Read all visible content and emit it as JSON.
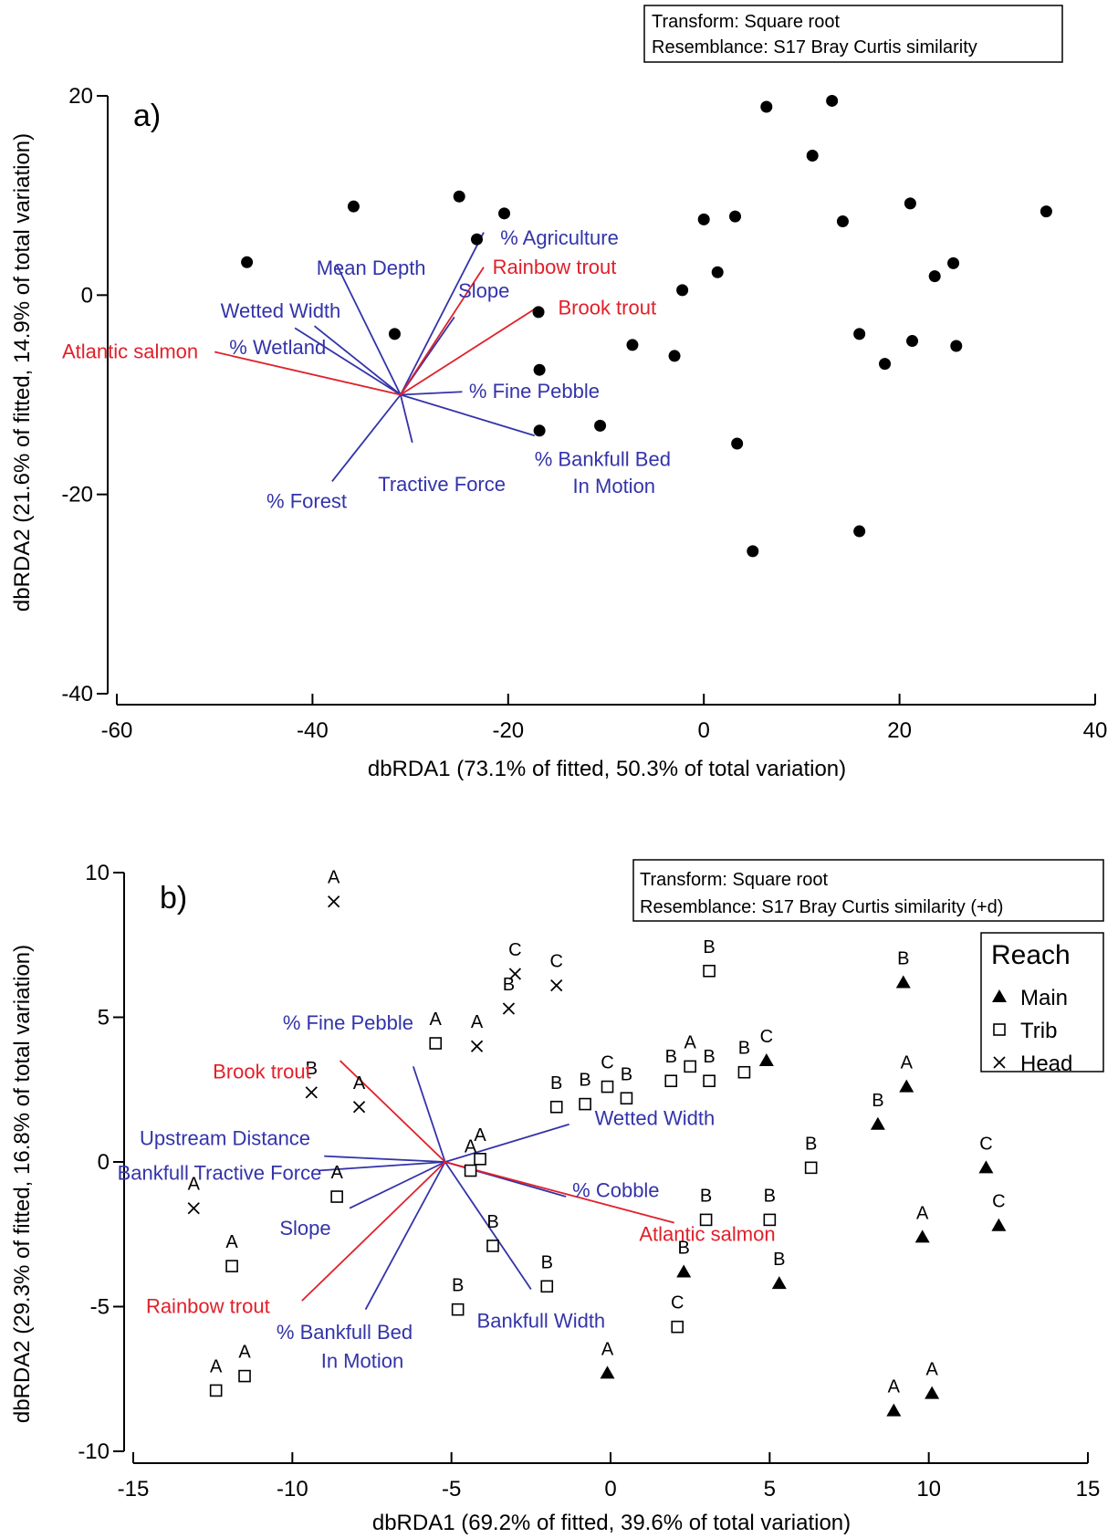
{
  "chart_data": [
    {
      "type": "scatter",
      "panel_label": "a)",
      "xlabel": "dbRDA1 (73.1% of fitted, 50.3% of total variation)",
      "ylabel": "dbRDA2 (21.6% of fitted, 14.9% of total variation)",
      "xlim": [
        -60,
        40
      ],
      "ylim": [
        -40,
        20
      ],
      "xticks": [
        -60,
        -40,
        -20,
        0,
        20,
        40
      ],
      "yticks": [
        -40,
        -20,
        0,
        20
      ],
      "grid": false,
      "info_box": [
        "Transform: Square root",
        "Resemblance: S17 Bray Curtis similarity"
      ],
      "points": [
        {
          "x": -46.7,
          "y": 3.3
        },
        {
          "x": -35.8,
          "y": 8.9
        },
        {
          "x": -31.6,
          "y": -3.9
        },
        {
          "x": -25.0,
          "y": 9.9
        },
        {
          "x": -23.2,
          "y": 5.6
        },
        {
          "x": -20.4,
          "y": 8.2
        },
        {
          "x": -16.9,
          "y": -1.7
        },
        {
          "x": -16.8,
          "y": -7.5
        },
        {
          "x": -16.8,
          "y": -13.6
        },
        {
          "x": -10.6,
          "y": -13.1
        },
        {
          "x": -7.3,
          "y": -5.0
        },
        {
          "x": -3.0,
          "y": -6.1
        },
        {
          "x": -2.2,
          "y": 0.5
        },
        {
          "x": 0.0,
          "y": 7.6
        },
        {
          "x": 1.4,
          "y": 2.3
        },
        {
          "x": 3.2,
          "y": 7.9
        },
        {
          "x": 3.4,
          "y": -14.9
        },
        {
          "x": 5.0,
          "y": -25.7
        },
        {
          "x": 6.4,
          "y": 18.9
        },
        {
          "x": 11.1,
          "y": 14.0
        },
        {
          "x": 13.1,
          "y": 19.5
        },
        {
          "x": 14.2,
          "y": 7.4
        },
        {
          "x": 15.9,
          "y": -3.9
        },
        {
          "x": 15.9,
          "y": -23.7
        },
        {
          "x": 18.5,
          "y": -6.9
        },
        {
          "x": 21.1,
          "y": 9.2
        },
        {
          "x": 21.3,
          "y": -4.6
        },
        {
          "x": 23.6,
          "y": 1.9
        },
        {
          "x": 25.5,
          "y": 3.2
        },
        {
          "x": 25.8,
          "y": -5.1
        },
        {
          "x": 35.0,
          "y": 8.4
        }
      ],
      "vectors": {
        "origin": [
          -31.0,
          -10.0
        ],
        "items": [
          {
            "label": "% Agriculture",
            "group": "env",
            "end": [
              -22.5,
              6.3
            ],
            "label_pos": [
              -20.8,
              5.7
            ]
          },
          {
            "label": "Mean Depth",
            "group": "env",
            "end": [
              -37.5,
              3.0
            ],
            "label_pos": [
              -39.6,
              2.7
            ]
          },
          {
            "label": "Wetted Width",
            "group": "env",
            "end": [
              -39.8,
              -3.1
            ],
            "label_pos": [
              -49.4,
              -1.6
            ]
          },
          {
            "label": "% Wetland",
            "group": "env",
            "end": [
              -41.8,
              -3.3
            ],
            "label_pos": [
              -48.5,
              -5.3
            ]
          },
          {
            "label": "Slope",
            "group": "env",
            "end": [
              -25.5,
              -2.2
            ],
            "label_pos": [
              -25.1,
              0.4
            ]
          },
          {
            "label": "% Fine Pebble",
            "group": "env",
            "end": [
              -24.7,
              -9.7
            ],
            "label_pos": [
              -24.0,
              -9.7
            ]
          },
          {
            "label": "% Bankfull Bed",
            "group": "env",
            "end": [
              -17.3,
              -14.1
            ],
            "label_pos": [
              -17.3,
              -16.5
            ]
          },
          {
            "label": "In Motion",
            "group": "env",
            "end": null,
            "label_pos": [
              -13.4,
              -19.2
            ]
          },
          {
            "label": "Tractive Force",
            "group": "env",
            "end": [
              -29.8,
              -14.8
            ],
            "label_pos": [
              -33.3,
              -19.0
            ]
          },
          {
            "label": "% Forest",
            "group": "env",
            "end": [
              -38.0,
              -18.7
            ],
            "label_pos": [
              -44.7,
              -20.7
            ]
          },
          {
            "label": "Rainbow trout",
            "group": "species",
            "end": [
              -22.5,
              2.8
            ],
            "label_pos": [
              -21.6,
              2.8
            ]
          },
          {
            "label": "Brook trout",
            "group": "species",
            "end": [
              -17.3,
              -1.4
            ],
            "label_pos": [
              -14.9,
              -1.3
            ]
          },
          {
            "label": "Atlantic salmon",
            "group": "species",
            "end": [
              -50.0,
              -5.7
            ],
            "label_pos": [
              -65.6,
              -5.7
            ]
          }
        ]
      }
    },
    {
      "type": "scatter",
      "panel_label": "b)",
      "xlabel": "dbRDA1 (69.2% of fitted, 39.6% of total variation)",
      "ylabel": "dbRDA2 (29.3% of fitted, 16.8% of total variation)",
      "xlim": [
        -15,
        15
      ],
      "ylim": [
        -10,
        10
      ],
      "xticks": [
        -15,
        -10,
        -5,
        0,
        5,
        10,
        15
      ],
      "yticks": [
        -10,
        -5,
        0,
        5,
        10
      ],
      "grid": false,
      "info_box": [
        "Transform: Square root",
        "Resemblance: S17 Bray Curtis similarity (+d)"
      ],
      "legend": {
        "title": "Reach",
        "position": "top-right",
        "items": [
          {
            "label": "Main",
            "marker": "triangle"
          },
          {
            "label": "Trib",
            "marker": "square"
          },
          {
            "label": "Head",
            "marker": "cross"
          }
        ]
      },
      "points": [
        {
          "x": -8.7,
          "y": 9.0,
          "reach": "Head",
          "label": "A"
        },
        {
          "x": -3.0,
          "y": 6.5,
          "reach": "Head",
          "label": "C"
        },
        {
          "x": -1.7,
          "y": 6.1,
          "reach": "Head",
          "label": "C"
        },
        {
          "x": -3.2,
          "y": 5.3,
          "reach": "Head",
          "label": "B"
        },
        {
          "x": -4.2,
          "y": 4.0,
          "reach": "Head",
          "label": "A"
        },
        {
          "x": -9.4,
          "y": 2.4,
          "reach": "Head",
          "label": "B"
        },
        {
          "x": -7.9,
          "y": 1.9,
          "reach": "Head",
          "label": "A"
        },
        {
          "x": -13.1,
          "y": -1.6,
          "reach": "Head",
          "label": "A"
        },
        {
          "x": 3.1,
          "y": 6.6,
          "reach": "Trib",
          "label": "B"
        },
        {
          "x": -5.5,
          "y": 4.1,
          "reach": "Trib",
          "label": "A"
        },
        {
          "x": 2.5,
          "y": 3.3,
          "reach": "Trib",
          "label": "A"
        },
        {
          "x": 1.9,
          "y": 2.8,
          "reach": "Trib",
          "label": "B"
        },
        {
          "x": 3.1,
          "y": 2.8,
          "reach": "Trib",
          "label": "B"
        },
        {
          "x": 4.2,
          "y": 3.1,
          "reach": "Trib",
          "label": "B"
        },
        {
          "x": -0.1,
          "y": 2.6,
          "reach": "Trib",
          "label": "C"
        },
        {
          "x": 0.5,
          "y": 2.2,
          "reach": "Trib",
          "label": "B"
        },
        {
          "x": -1.7,
          "y": 1.9,
          "reach": "Trib",
          "label": "B"
        },
        {
          "x": -0.8,
          "y": 2.0,
          "reach": "Trib",
          "label": "B"
        },
        {
          "x": -4.1,
          "y": 0.1,
          "reach": "Trib",
          "label": "A"
        },
        {
          "x": -4.4,
          "y": -0.3,
          "reach": "Trib",
          "label": "A"
        },
        {
          "x": -8.6,
          "y": -1.2,
          "reach": "Trib",
          "label": "A"
        },
        {
          "x": 6.3,
          "y": -0.2,
          "reach": "Trib",
          "label": "B"
        },
        {
          "x": 3.0,
          "y": -2.0,
          "reach": "Trib",
          "label": "B"
        },
        {
          "x": 5.0,
          "y": -2.0,
          "reach": "Trib",
          "label": "B"
        },
        {
          "x": -11.9,
          "y": -3.6,
          "reach": "Trib",
          "label": "A"
        },
        {
          "x": -3.7,
          "y": -2.9,
          "reach": "Trib",
          "label": "B"
        },
        {
          "x": -2.0,
          "y": -4.3,
          "reach": "Trib",
          "label": "B"
        },
        {
          "x": -4.8,
          "y": -5.1,
          "reach": "Trib",
          "label": "B"
        },
        {
          "x": 2.1,
          "y": -5.7,
          "reach": "Trib",
          "label": "C"
        },
        {
          "x": -11.5,
          "y": -7.4,
          "reach": "Trib",
          "label": "A"
        },
        {
          "x": -12.4,
          "y": -7.9,
          "reach": "Trib",
          "label": "A"
        },
        {
          "x": 9.2,
          "y": 6.2,
          "reach": "Main",
          "label": "B"
        },
        {
          "x": 4.9,
          "y": 3.5,
          "reach": "Main",
          "label": "C"
        },
        {
          "x": 9.3,
          "y": 2.6,
          "reach": "Main",
          "label": "A"
        },
        {
          "x": 8.4,
          "y": 1.3,
          "reach": "Main",
          "label": "B"
        },
        {
          "x": 11.8,
          "y": -0.2,
          "reach": "Main",
          "label": "C"
        },
        {
          "x": 12.2,
          "y": -2.2,
          "reach": "Main",
          "label": "C"
        },
        {
          "x": 9.8,
          "y": -2.6,
          "reach": "Main",
          "label": "A"
        },
        {
          "x": 2.3,
          "y": -3.8,
          "reach": "Main",
          "label": "B"
        },
        {
          "x": 5.3,
          "y": -4.2,
          "reach": "Main",
          "label": "B"
        },
        {
          "x": -0.1,
          "y": -7.3,
          "reach": "Main",
          "label": "A"
        },
        {
          "x": 8.9,
          "y": -8.6,
          "reach": "Main",
          "label": "A"
        },
        {
          "x": 10.1,
          "y": -8.0,
          "reach": "Main",
          "label": "A"
        }
      ],
      "vectors": {
        "origin": [
          -5.2,
          0.0
        ],
        "items": [
          {
            "label": "% Fine Pebble",
            "group": "env",
            "end": [
              -6.2,
              3.3
            ],
            "label_pos": [
              -10.3,
              4.8
            ]
          },
          {
            "label": "Wetted Width",
            "group": "env",
            "end": [
              -1.3,
              1.3
            ],
            "label_pos": [
              -0.5,
              1.5
            ]
          },
          {
            "label": "Upstream Distance",
            "group": "env",
            "end": [
              -9.0,
              0.2
            ],
            "label_pos": [
              -14.8,
              0.8
            ]
          },
          {
            "label": "Bankfull Tractive Force",
            "group": "env",
            "end": [
              -9.2,
              -0.3
            ],
            "label_pos": [
              -15.5,
              -0.4
            ]
          },
          {
            "label": "Slope",
            "group": "env",
            "end": [
              -8.2,
              -1.6
            ],
            "label_pos": [
              -10.4,
              -2.3
            ]
          },
          {
            "label": "% Cobble",
            "group": "env",
            "end": [
              -1.4,
              -1.2
            ],
            "label_pos": [
              -1.2,
              -1.0
            ]
          },
          {
            "label": "Bankfull Width",
            "group": "env",
            "end": [
              -2.5,
              -4.4
            ],
            "label_pos": [
              -4.2,
              -5.5
            ]
          },
          {
            "label": "% Bankfull Bed",
            "group": "env",
            "end": [
              -7.7,
              -5.1
            ],
            "label_pos": [
              -10.5,
              -5.9
            ]
          },
          {
            "label": "In Motion",
            "group": "env",
            "end": null,
            "label_pos": [
              -9.1,
              -6.9
            ]
          },
          {
            "label": "Brook trout",
            "group": "species",
            "end": [
              -8.5,
              3.5
            ],
            "label_pos": [
              -12.5,
              3.1
            ]
          },
          {
            "label": "Rainbow trout",
            "group": "species",
            "end": [
              -9.7,
              -4.8
            ],
            "label_pos": [
              -14.6,
              -5.0
            ]
          },
          {
            "label": "Atlantic salmon",
            "group": "species",
            "end": [
              2.0,
              -2.1
            ],
            "label_pos": [
              0.9,
              -2.5
            ]
          }
        ]
      }
    }
  ]
}
